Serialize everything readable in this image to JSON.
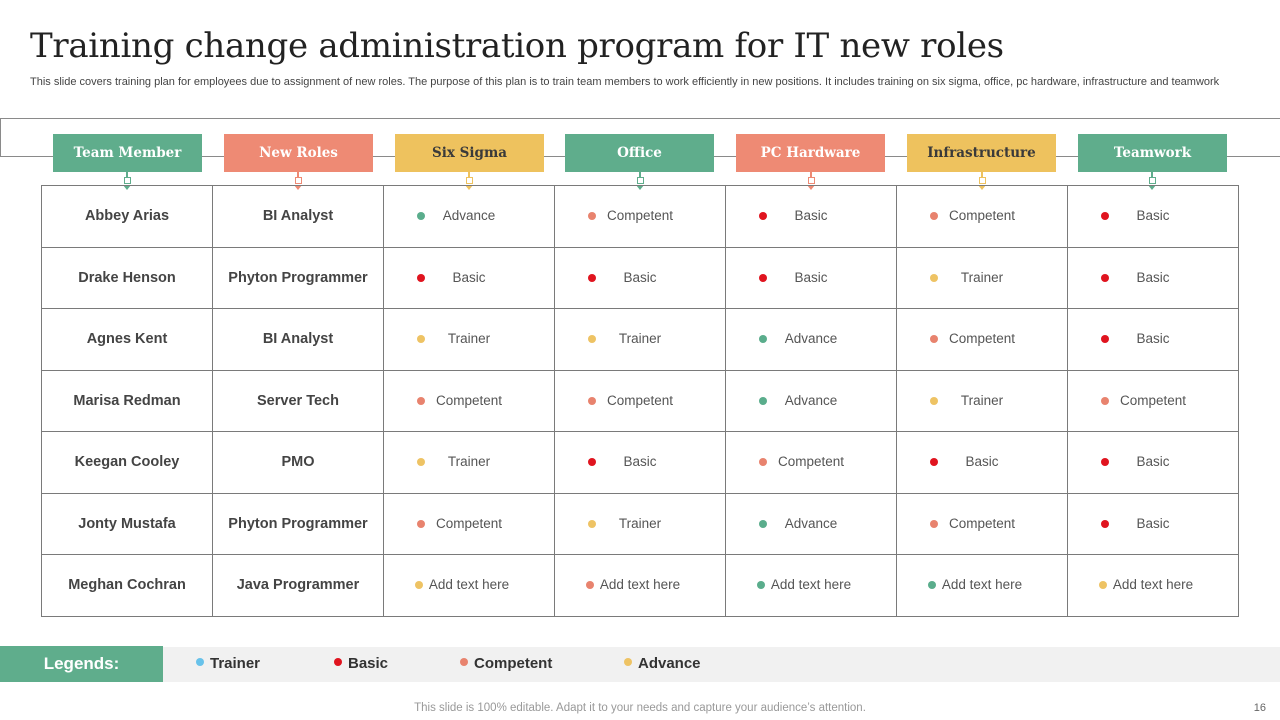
{
  "title": "Training change administration program for IT new roles",
  "subtitle": "This slide covers training plan for employees due to assignment of new roles. The purpose of this plan is to train team members to work efficiently in new positions. It includes training on six sigma, office, pc hardware, infrastructure and teamwork",
  "colors": {
    "green": "#5fad8c",
    "salmon": "#ee8a74",
    "yellow": "#eec25e",
    "trainer": "#68c2ea",
    "basic": "#e0141f",
    "competent": "#e8836e",
    "advance": "#5aad8c",
    "trainer_cell": "#eec364"
  },
  "headers": [
    {
      "label": "Team Member",
      "color": "#5fad8c",
      "text_color": "#ffffff"
    },
    {
      "label": "New Roles",
      "color": "#ee8a74",
      "text_color": "#ffffff"
    },
    {
      "label": "Six Sigma",
      "color": "#eec25e",
      "text_color": "#3a3a3a"
    },
    {
      "label": "Office",
      "color": "#5fad8c",
      "text_color": "#ffffff"
    },
    {
      "label": "PC Hardware",
      "color": "#ee8a74",
      "text_color": "#ffffff"
    },
    {
      "label": "Infrastructure",
      "color": "#eec25e",
      "text_color": "#3a3a3a"
    },
    {
      "label": "Teamwork",
      "color": "#5fad8c",
      "text_color": "#ffffff"
    }
  ],
  "rows": [
    {
      "name": "Abbey Arias",
      "role": "BI Analyst",
      "skills": [
        {
          "label": "Advance",
          "level": "advance"
        },
        {
          "label": "Competent",
          "level": "competent"
        },
        {
          "label": "Basic",
          "level": "basic"
        },
        {
          "label": "Competent",
          "level": "competent"
        },
        {
          "label": "Basic",
          "level": "basic"
        }
      ]
    },
    {
      "name": "Drake Henson",
      "role": "Phyton Programmer",
      "skills": [
        {
          "label": "Basic",
          "level": "basic"
        },
        {
          "label": "Basic",
          "level": "basic"
        },
        {
          "label": "Basic",
          "level": "basic"
        },
        {
          "label": "Trainer",
          "level": "trainer"
        },
        {
          "label": "Basic",
          "level": "basic"
        }
      ]
    },
    {
      "name": "Agnes Kent",
      "role": "BI Analyst",
      "skills": [
        {
          "label": "Trainer",
          "level": "trainer"
        },
        {
          "label": "Trainer",
          "level": "trainer"
        },
        {
          "label": "Advance",
          "level": "advance"
        },
        {
          "label": "Competent",
          "level": "competent"
        },
        {
          "label": "Basic",
          "level": "basic"
        }
      ]
    },
    {
      "name": "Marisa Redman",
      "role": "Server Tech",
      "skills": [
        {
          "label": "Competent",
          "level": "competent"
        },
        {
          "label": "Competent",
          "level": "competent"
        },
        {
          "label": "Advance",
          "level": "advance"
        },
        {
          "label": "Trainer",
          "level": "trainer"
        },
        {
          "label": "Competent",
          "level": "competent"
        }
      ]
    },
    {
      "name": "Keegan Cooley",
      "role": "PMO",
      "skills": [
        {
          "label": "Trainer",
          "level": "trainer"
        },
        {
          "label": "Basic",
          "level": "basic"
        },
        {
          "label": "Competent",
          "level": "competent"
        },
        {
          "label": "Basic",
          "level": "basic"
        },
        {
          "label": "Basic",
          "level": "basic"
        }
      ]
    },
    {
      "name": "Jonty Mustafa",
      "role": "Phyton Programmer",
      "skills": [
        {
          "label": "Competent",
          "level": "competent"
        },
        {
          "label": "Trainer",
          "level": "trainer"
        },
        {
          "label": "Advance",
          "level": "advance"
        },
        {
          "label": "Competent",
          "level": "competent"
        },
        {
          "label": "Basic",
          "level": "basic"
        }
      ]
    },
    {
      "name": "Meghan Cochran",
      "role": "Java Programmer",
      "skills": [
        {
          "label": "Add text here",
          "level": "trainer"
        },
        {
          "label": "Add text here",
          "level": "competent"
        },
        {
          "label": "Add text here",
          "level": "advance"
        },
        {
          "label": "Add text here",
          "level": "advance"
        },
        {
          "label": "Add text here",
          "level": "trainer"
        }
      ]
    }
  ],
  "legend": {
    "title": "Legends:",
    "items": [
      {
        "label": "Trainer",
        "color": "#68c2ea"
      },
      {
        "label": "Basic",
        "color": "#e0141f"
      },
      {
        "label": "Competent",
        "color": "#e8836e"
      },
      {
        "label": "Advance",
        "color": "#eec364"
      }
    ]
  },
  "footer": "This slide is 100% editable. Adapt it to your needs and capture your audience’s attention.",
  "page_number": "16"
}
